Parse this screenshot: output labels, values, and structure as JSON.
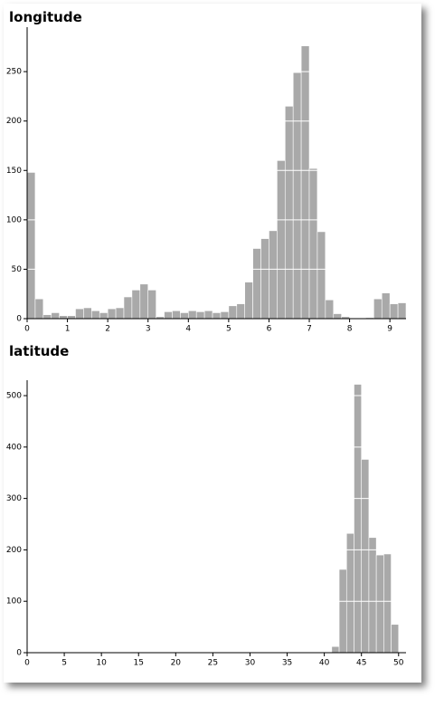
{
  "chart_data": [
    {
      "type": "histogram",
      "title": "longitude",
      "color": "#a9a9a9",
      "grid": true,
      "grid_color": "#ffffff",
      "bins": [
        0,
        0.2,
        0.4,
        0.6,
        0.8,
        1.0,
        1.2,
        1.4,
        1.6,
        1.8,
        2.0,
        2.2,
        2.4,
        2.6,
        2.8,
        3.0,
        3.2,
        3.4,
        3.6,
        3.8,
        4.0,
        4.2,
        4.4,
        4.6,
        4.8,
        5.0,
        5.2,
        5.4,
        5.6,
        5.8,
        6.0,
        6.2,
        6.4,
        6.6,
        6.8,
        7.0,
        7.2,
        7.4,
        7.6,
        7.8,
        8.0,
        8.2,
        8.4,
        8.6,
        8.8,
        9.0,
        9.2,
        9.4
      ],
      "values": [
        148,
        20,
        4,
        6,
        3,
        3,
        10,
        11,
        8,
        6,
        10,
        11,
        22,
        29,
        35,
        29,
        2,
        7,
        8,
        6,
        8,
        7,
        8,
        6,
        7,
        13,
        15,
        37,
        71,
        81,
        89,
        160,
        215,
        249,
        276,
        152,
        88,
        19,
        5,
        2,
        0,
        0,
        1,
        20,
        26,
        15,
        16
      ],
      "xlim": [
        0,
        9.4
      ],
      "xticks": [
        0,
        1,
        2,
        3,
        4,
        5,
        6,
        7,
        8,
        9
      ],
      "ylim": [
        0,
        295
      ],
      "yticks": [
        0,
        50,
        100,
        150,
        200,
        250
      ]
    },
    {
      "type": "histogram",
      "title": "latitude",
      "color": "#a9a9a9",
      "grid": true,
      "grid_color": "#ffffff",
      "bins": [
        41,
        42,
        43,
        44,
        45,
        46,
        47,
        48,
        49,
        50
      ],
      "values": [
        12,
        162,
        232,
        522,
        376,
        224,
        190,
        192,
        55
      ],
      "xlim": [
        0,
        51
      ],
      "xticks": [
        0,
        5,
        10,
        15,
        20,
        25,
        30,
        35,
        40,
        45,
        50
      ],
      "ylim": [
        0,
        530
      ],
      "yticks": [
        0,
        100,
        200,
        300,
        400,
        500
      ]
    }
  ]
}
